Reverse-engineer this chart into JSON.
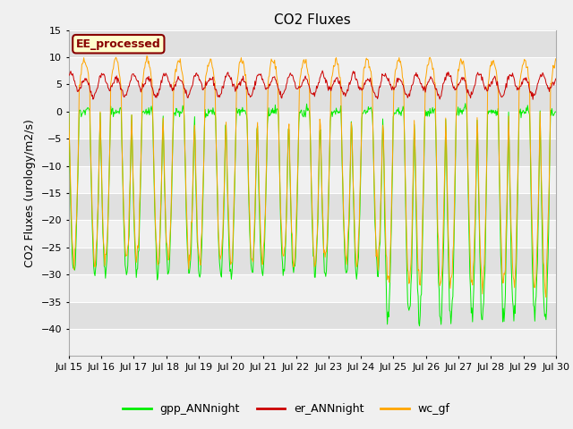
{
  "title": "CO2 Fluxes",
  "ylabel": "CO2 Fluxes (urology/m2/s)",
  "ylim": [
    -45,
    15
  ],
  "yticks": [
    -40,
    -35,
    -30,
    -25,
    -20,
    -15,
    -10,
    -5,
    0,
    5,
    10,
    15
  ],
  "xtick_labels": [
    "Jul 15",
    "Jul 16",
    "Jul 17",
    "Jul 18",
    "Jul 19",
    "Jul 20",
    "Jul 21",
    "Jul 22",
    "Jul 23",
    "Jul 24",
    "Jul 25",
    "Jul 26",
    "Jul 27",
    "Jul 28",
    "Jul 29",
    "Jul 30"
  ],
  "annotation_text": "EE_processed",
  "annotation_bg": "#ffffcc",
  "annotation_border": "#880000",
  "color_gpp": "#00ee00",
  "color_er": "#cc0000",
  "color_wc": "#ffa500",
  "legend_labels": [
    "gpp_ANNnight",
    "er_ANNnight",
    "wc_gf"
  ],
  "bg_light": "#f0f0f0",
  "bg_dark": "#e0e0e0",
  "fig_bg": "#f0f0f0",
  "title_fontsize": 11,
  "label_fontsize": 9,
  "tick_fontsize": 8,
  "legend_fontsize": 9
}
